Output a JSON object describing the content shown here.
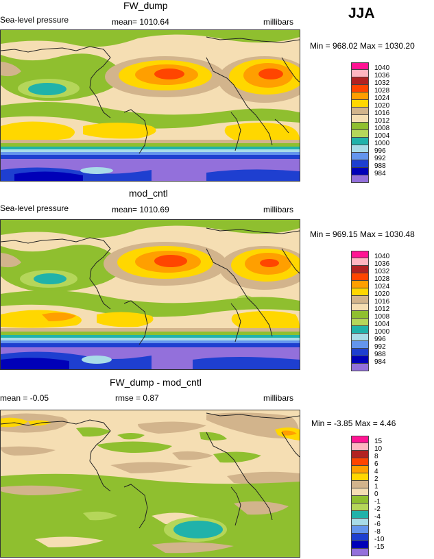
{
  "season": "JJA",
  "panels": [
    {
      "title": "FW_dump",
      "left_label": "Sea-level pressure",
      "center_label": "mean= 1010.64",
      "right_label": "millibars",
      "minmax": "Min = 968.02 Max = 1030.20",
      "legend": [
        {
          "label": "1040",
          "color": "#ff1493"
        },
        {
          "label": "1036",
          "color": "#ffb6c1"
        },
        {
          "label": "1032",
          "color": "#b22222"
        },
        {
          "label": "1028",
          "color": "#ff4500"
        },
        {
          "label": "1024",
          "color": "#ff9f00"
        },
        {
          "label": "1020",
          "color": "#ffd700"
        },
        {
          "label": "1016",
          "color": "#d2b48c"
        },
        {
          "label": "1012",
          "color": "#f5deb3"
        },
        {
          "label": "1008",
          "color": "#8fbf2f"
        },
        {
          "label": "1004",
          "color": "#b5d65a"
        },
        {
          "label": "1000",
          "color": "#20b2aa"
        },
        {
          "label": "996",
          "color": "#a8dce8"
        },
        {
          "label": "992",
          "color": "#6495ed"
        },
        {
          "label": "988",
          "color": "#1e3fd0"
        },
        {
          "label": "984",
          "color": "#0000b8"
        },
        {
          "label": "",
          "color": "#9370db"
        }
      ]
    },
    {
      "title": "mod_cntl",
      "left_label": "Sea-level pressure",
      "center_label": "mean= 1010.69",
      "right_label": "millibars",
      "minmax": "Min = 969.15 Max = 1030.48",
      "legend": [
        {
          "label": "1040",
          "color": "#ff1493"
        },
        {
          "label": "1036",
          "color": "#ffb6c1"
        },
        {
          "label": "1032",
          "color": "#b22222"
        },
        {
          "label": "1028",
          "color": "#ff4500"
        },
        {
          "label": "1024",
          "color": "#ff9f00"
        },
        {
          "label": "1020",
          "color": "#ffd700"
        },
        {
          "label": "1016",
          "color": "#d2b48c"
        },
        {
          "label": "1012",
          "color": "#f5deb3"
        },
        {
          "label": "1008",
          "color": "#8fbf2f"
        },
        {
          "label": "1004",
          "color": "#b5d65a"
        },
        {
          "label": "1000",
          "color": "#20b2aa"
        },
        {
          "label": "996",
          "color": "#a8dce8"
        },
        {
          "label": "992",
          "color": "#6495ed"
        },
        {
          "label": "988",
          "color": "#1e3fd0"
        },
        {
          "label": "984",
          "color": "#0000b8"
        },
        {
          "label": "",
          "color": "#9370db"
        }
      ]
    },
    {
      "title": "FW_dump - mod_cntl",
      "left_label": "mean =  -0.05",
      "center_label": "rmse =   0.87",
      "right_label": "millibars",
      "minmax": "Min =  -3.85 Max =   4.46",
      "legend": [
        {
          "label": "15",
          "color": "#ff1493"
        },
        {
          "label": "10",
          "color": "#ffb6c1"
        },
        {
          "label": "8",
          "color": "#b22222"
        },
        {
          "label": "6",
          "color": "#ff4500"
        },
        {
          "label": "4",
          "color": "#ff9f00"
        },
        {
          "label": "2",
          "color": "#ffd700"
        },
        {
          "label": "1",
          "color": "#d2b48c"
        },
        {
          "label": "0",
          "color": "#f5deb3"
        },
        {
          "label": "-1",
          "color": "#8fbf2f"
        },
        {
          "label": "-2",
          "color": "#b5d65a"
        },
        {
          "label": "-4",
          "color": "#20b2aa"
        },
        {
          "label": "-6",
          "color": "#a8dce8"
        },
        {
          "label": "-8",
          "color": "#6495ed"
        },
        {
          "label": "-10",
          "color": "#1e3fd0"
        },
        {
          "label": "-15",
          "color": "#0000b8"
        },
        {
          "label": "",
          "color": "#9370db"
        }
      ]
    }
  ]
}
